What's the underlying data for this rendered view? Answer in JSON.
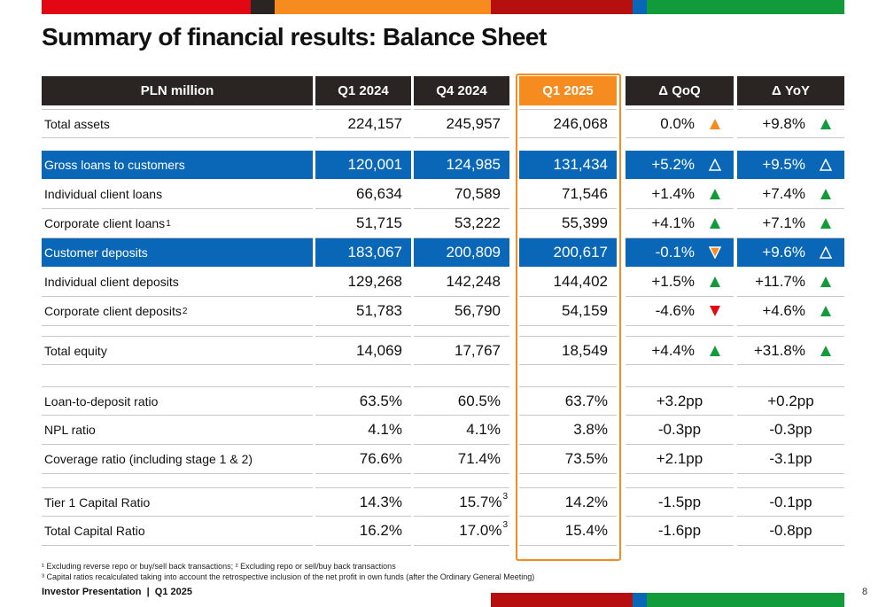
{
  "page": {
    "title": "Summary of financial results: Balance Sheet",
    "brand_colors": {
      "red": "#e30613",
      "dark": "#2a2522",
      "orange": "#f68b1f",
      "darkred": "#b50f0f",
      "blue": "#0a67b8",
      "green": "#129b3a"
    }
  },
  "table": {
    "headers": [
      "PLN million",
      "Q1 2024",
      "Q4 2024",
      "Q1 2025",
      "Δ QoQ",
      "Δ YoY"
    ],
    "rows": [
      {
        "label": "Total assets",
        "sup": "",
        "v1": "224,157",
        "v2": "245,957",
        "v3": "246,068",
        "qoq": "0.0%",
        "qoq_icon": "up-orange",
        "yoy": "+9.8%",
        "yoy_icon": "up-green"
      },
      {
        "label": "Gross loans to customers",
        "sup": "",
        "v1": "120,001",
        "v2": "124,985",
        "v3": "131,434",
        "qoq": "+5.2%",
        "qoq_icon": "up-outline",
        "yoy": "+9.5%",
        "yoy_icon": "up-outline"
      },
      {
        "label": "Individual client loans",
        "sup": "",
        "v1": "66,634",
        "v2": "70,589",
        "v3": "71,546",
        "qoq": "+1.4%",
        "qoq_icon": "up-green",
        "yoy": "+7.4%",
        "yoy_icon": "up-green"
      },
      {
        "label": "Corporate client loans",
        "sup": "1",
        "v1": "51,715",
        "v2": "53,222",
        "v3": "55,399",
        "qoq": "+4.1%",
        "qoq_icon": "up-green",
        "yoy": "+7.1%",
        "yoy_icon": "up-green"
      },
      {
        "label": "Customer deposits",
        "sup": "",
        "v1": "183,067",
        "v2": "200,809",
        "v3": "200,617",
        "qoq": "-0.1%",
        "qoq_icon": "down-orange-outline",
        "yoy": "+9.6%",
        "yoy_icon": "up-outline"
      },
      {
        "label": "Individual client deposits",
        "sup": "",
        "v1": "129,268",
        "v2": "142,248",
        "v3": "144,402",
        "qoq": "+1.5%",
        "qoq_icon": "up-green",
        "yoy": "+11.7%",
        "yoy_icon": "up-green"
      },
      {
        "label": "Corporate client deposits",
        "sup": "2",
        "v1": "51,783",
        "v2": "56,790",
        "v3": "54,159",
        "qoq": "-4.6%",
        "qoq_icon": "down-red",
        "yoy": "+4.6%",
        "yoy_icon": "up-green"
      },
      {
        "label": "Total equity",
        "sup": "",
        "v1": "14,069",
        "v2": "17,767",
        "v3": "18,549",
        "qoq": "+4.4%",
        "qoq_icon": "up-green",
        "yoy": "+31.8%",
        "yoy_icon": "up-green"
      },
      {
        "label": "Loan-to-deposit ratio",
        "sup": "",
        "v1": "63.5%",
        "v2": "60.5%",
        "v3": "63.7%",
        "qoq": "+3.2pp",
        "qoq_icon": "",
        "yoy": "+0.2pp",
        "yoy_icon": ""
      },
      {
        "label": "NPL ratio",
        "sup": "",
        "v1": "4.1%",
        "v2": "4.1%",
        "v3": "3.8%",
        "qoq": "-0.3pp",
        "qoq_icon": "",
        "yoy": "-0.3pp",
        "yoy_icon": ""
      },
      {
        "label": "Coverage ratio (including stage 1 & 2)",
        "sup": "",
        "v1": "76.6%",
        "v2": "71.4%",
        "v3": "73.5%",
        "qoq": "+2.1pp",
        "qoq_icon": "",
        "yoy": "-3.1pp",
        "yoy_icon": ""
      },
      {
        "label": "Tier 1 Capital Ratio",
        "sup": "",
        "v1": "14.3%",
        "v2": "15.7%",
        "v2_sup": "3",
        "v3": "14.2%",
        "qoq": "-1.5pp",
        "qoq_icon": "",
        "yoy": "-0.1pp",
        "yoy_icon": ""
      },
      {
        "label": "Total Capital Ratio",
        "sup": "",
        "v1": "16.2%",
        "v2": "17.0%",
        "v2_sup": "3",
        "v3": "15.4%",
        "qoq": "-1.6pp",
        "qoq_icon": "",
        "yoy": "-0.8pp",
        "yoy_icon": ""
      }
    ]
  },
  "footnotes": {
    "line1": "¹ Excluding reverse repo or buy/sell back transactions; ² Excluding repo or sell/buy back transactions",
    "line2": "³ Capital ratios recalculated taking into account the retrospective inclusion of the net profit in own funds (after the Ordinary General Meeting)"
  },
  "footer": {
    "left": "Investor Presentation  |  Q1 2025",
    "page_number": "8"
  }
}
